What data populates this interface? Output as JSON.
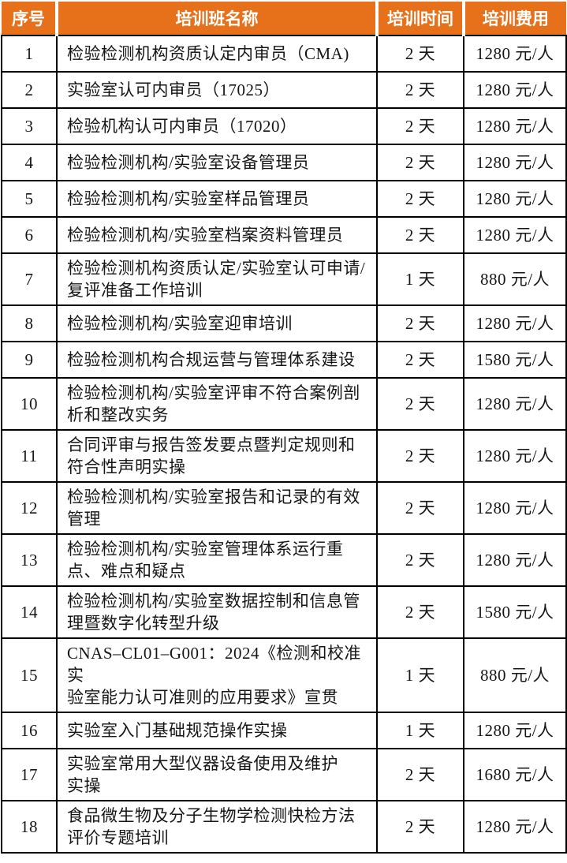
{
  "colors": {
    "header_bg": "#E6711A",
    "header_text": "#FFFFFF",
    "grid_border": "#000000",
    "body_text": "#161616"
  },
  "table": {
    "headers": [
      "序号",
      "培训班名称",
      "培训时间",
      "培训费用"
    ],
    "rows": [
      {
        "no": "1",
        "name": "检验检测机构资质认定内审员（CMA)",
        "duration": "2 天",
        "fee": "1280 元/人"
      },
      {
        "no": "2",
        "name": "实验室认可内审员（17025）",
        "duration": "2 天",
        "fee": "1280 元/人"
      },
      {
        "no": "3",
        "name": "检验机构认可内审员（17020）",
        "duration": "2 天",
        "fee": "1280 元/人"
      },
      {
        "no": "4",
        "name": "检验检测机构/实验室设备管理员",
        "duration": "2 天",
        "fee": "1280 元/人"
      },
      {
        "no": "5",
        "name": "检验检测机构/实验室样品管理员",
        "duration": "2 天",
        "fee": "1280 元/人"
      },
      {
        "no": "6",
        "name": "检验检测机构/实验室档案资料管理员",
        "duration": "2 天",
        "fee": "1280 元/人"
      },
      {
        "no": "7",
        "name": "检验检测机构资质认定/实验室认可申请/\n复评准备工作培训",
        "duration": "1 天",
        "fee": "880 元/人"
      },
      {
        "no": "8",
        "name": "检验检测机构/实验室迎审培训",
        "duration": "2 天",
        "fee": "1280 元/人"
      },
      {
        "no": "9",
        "name": "检验检测机构合规运营与管理体系建设",
        "duration": "2 天",
        "fee": "1580 元/人"
      },
      {
        "no": "10",
        "name": "检验检测机构/实验室评审不符合案例剖\n析和整改实务",
        "duration": "2 天",
        "fee": "1280 元/人"
      },
      {
        "no": "11",
        "name": "合同评审与报告签发要点暨判定规则和\n符合性声明实操",
        "duration": "2 天",
        "fee": "1280 元/人"
      },
      {
        "no": "12",
        "name": "检验检测机构/实验室报告和记录的有效\n管理",
        "duration": "2 天",
        "fee": "1280 元/人"
      },
      {
        "no": "13",
        "name": "检验检测机构/实验室管理体系运行重\n点、难点和疑点",
        "duration": "2 天",
        "fee": "1280 元/人"
      },
      {
        "no": "14",
        "name": "检验检测机构/实验室数据控制和信息管\n理暨数字化转型升级",
        "duration": "2 天",
        "fee": "1580 元/人"
      },
      {
        "no": "15",
        "name": "CNAS–CL01–G001：2024《检测和校准实\n验室能力认可准则的应用要求》宣贯",
        "duration": "1 天",
        "fee": "880 元/人"
      },
      {
        "no": "16",
        "name": "实验室入门基础规范操作实操",
        "duration": "1 天",
        "fee": "1280 元/人"
      },
      {
        "no": "17",
        "name": "实验室常用大型仪器设备使用及维护\n实操",
        "duration": "2 天",
        "fee": "1680 元/人"
      },
      {
        "no": "18",
        "name": "食品微生物及分子生物学检测快检方法\n评价专题培训",
        "duration": "2 天",
        "fee": "1280 元/人"
      }
    ]
  }
}
